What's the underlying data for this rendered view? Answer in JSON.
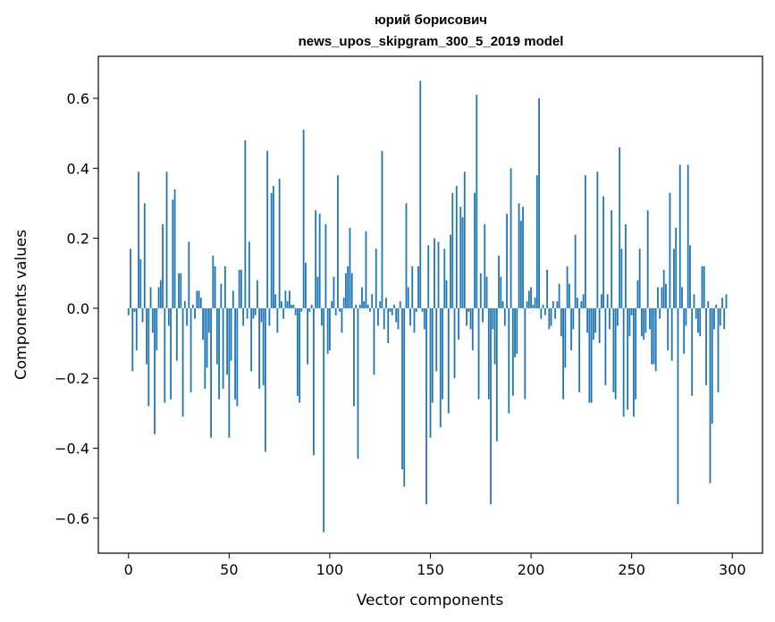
{
  "chart_data": {
    "type": "bar",
    "title_line1": "юрий борисович",
    "title_line2": "news_upos_skipgram_300_5_2019 model",
    "xlabel": "Vector components",
    "ylabel": "Components values",
    "xlim": [
      -15,
      315
    ],
    "ylim": [
      -0.7,
      0.72
    ],
    "xticks": [
      0,
      50,
      100,
      150,
      200,
      250,
      300
    ],
    "xtick_labels": [
      "0",
      "50",
      "100",
      "150",
      "200",
      "250",
      "300"
    ],
    "yticks": [
      -0.6,
      -0.4,
      -0.2,
      0.0,
      0.2,
      0.4,
      0.6
    ],
    "ytick_labels": [
      "−0.6",
      "−0.4",
      "−0.2",
      "0.0",
      "0.2",
      "0.4",
      "0.6"
    ],
    "bar_color": "#1f77b4",
    "grid": false,
    "values": [
      -0.02,
      0.17,
      -0.18,
      -0.01,
      -0.12,
      0.39,
      0.14,
      -0.04,
      0.3,
      -0.16,
      -0.28,
      0.06,
      -0.07,
      -0.36,
      -0.12,
      0.06,
      0.08,
      0.24,
      -0.27,
      0.39,
      -0.05,
      -0.26,
      0.31,
      0.34,
      -0.15,
      0.1,
      0.1,
      -0.31,
      0.02,
      -0.05,
      0.19,
      -0.24,
      0.01,
      -0.03,
      0.05,
      0.05,
      0.03,
      -0.09,
      -0.23,
      -0.17,
      -0.07,
      -0.37,
      0.15,
      0.12,
      -0.16,
      -0.26,
      0.07,
      -0.23,
      0.12,
      -0.19,
      -0.37,
      -0.15,
      0.05,
      -0.26,
      -0.28,
      0.11,
      0.11,
      -0.05,
      0.48,
      -0.03,
      0.19,
      -0.18,
      -0.03,
      -0.02,
      0.08,
      -0.23,
      -0.04,
      -0.22,
      -0.41,
      0.45,
      -0.05,
      0.33,
      0.35,
      0.04,
      -0.07,
      0.37,
      0.02,
      -0.03,
      0.05,
      0.02,
      0.05,
      0.01,
      0.01,
      -0.02,
      -0.25,
      -0.27,
      -0.01,
      0.51,
      0.13,
      -0.16,
      -0.01,
      0.01,
      -0.42,
      0.28,
      0.09,
      0.27,
      -0.05,
      -0.64,
      0.24,
      -0.13,
      -0.12,
      0.02,
      0.09,
      -0.02,
      0.38,
      -0.01,
      -0.07,
      0.03,
      0.1,
      0.12,
      0.23,
      0.1,
      -0.28,
      0.01,
      -0.43,
      0.01,
      0.06,
      0.02,
      0.22,
      0.01,
      -0.01,
      0.04,
      -0.19,
      0.17,
      -0.05,
      0.02,
      0.45,
      -0.06,
      0.03,
      -0.1,
      -0.01,
      -0.02,
      0.01,
      -0.04,
      -0.06,
      0.02,
      -0.46,
      -0.51,
      0.3,
      0.06,
      -0.05,
      0.12,
      -0.07,
      -0.01,
      0.12,
      0.65,
      -0.01,
      -0.06,
      -0.56,
      0.18,
      -0.37,
      -0.27,
      0.2,
      -0.18,
      0.19,
      -0.34,
      -0.26,
      0.17,
      0.08,
      -0.3,
      0.21,
      0.33,
      -0.2,
      0.35,
      -0.09,
      0.29,
      0.26,
      0.39,
      -0.05,
      -0.01,
      -0.06,
      -0.12,
      0.33,
      0.61,
      -0.26,
      0.1,
      -0.04,
      0.24,
      0.09,
      -0.26,
      -0.56,
      -0.06,
      -0.16,
      -0.38,
      0.15,
      0.09,
      0.02,
      -0.05,
      0.27,
      -0.3,
      0.4,
      -0.25,
      -0.14,
      -0.13,
      0.3,
      0.25,
      0.29,
      -0.26,
      0.02,
      0.05,
      0.06,
      0.01,
      0.03,
      0.38,
      0.6,
      -0.03,
      0.01,
      -0.02,
      0.11,
      -0.06,
      -0.05,
      0.02,
      -0.03,
      0.02,
      0.07,
      -0.08,
      -0.26,
      -0.17,
      0.12,
      0.07,
      -0.12,
      -0.06,
      0.21,
      0.03,
      -0.24,
      0.02,
      0.04,
      0.38,
      -0.07,
      -0.27,
      -0.27,
      -0.09,
      -0.07,
      0.39,
      -0.1,
      0.04,
      0.32,
      -0.22,
      0.04,
      -0.06,
      0.28,
      -0.24,
      -0.26,
      -0.05,
      0.46,
      0.17,
      -0.31,
      0.24,
      -0.29,
      -0.08,
      -0.02,
      -0.31,
      -0.26,
      0.08,
      0.17,
      -0.08,
      -0.09,
      -0.07,
      0.28,
      -0.06,
      -0.16,
      -0.16,
      -0.18,
      0.06,
      -0.03,
      0.06,
      0.11,
      0.07,
      -0.12,
      0.33,
      -0.15,
      0.17,
      0.23,
      -0.56,
      0.41,
      0.06,
      -0.13,
      -0.05,
      0.41,
      0.18,
      -0.25,
      0.04,
      -0.03,
      -0.07,
      -0.08,
      0.12,
      0.12,
      -0.22,
      0.02,
      -0.5,
      -0.33,
      -0.06,
      0.01,
      -0.24,
      -0.05,
      0.03,
      -0.06,
      0.04
    ]
  }
}
